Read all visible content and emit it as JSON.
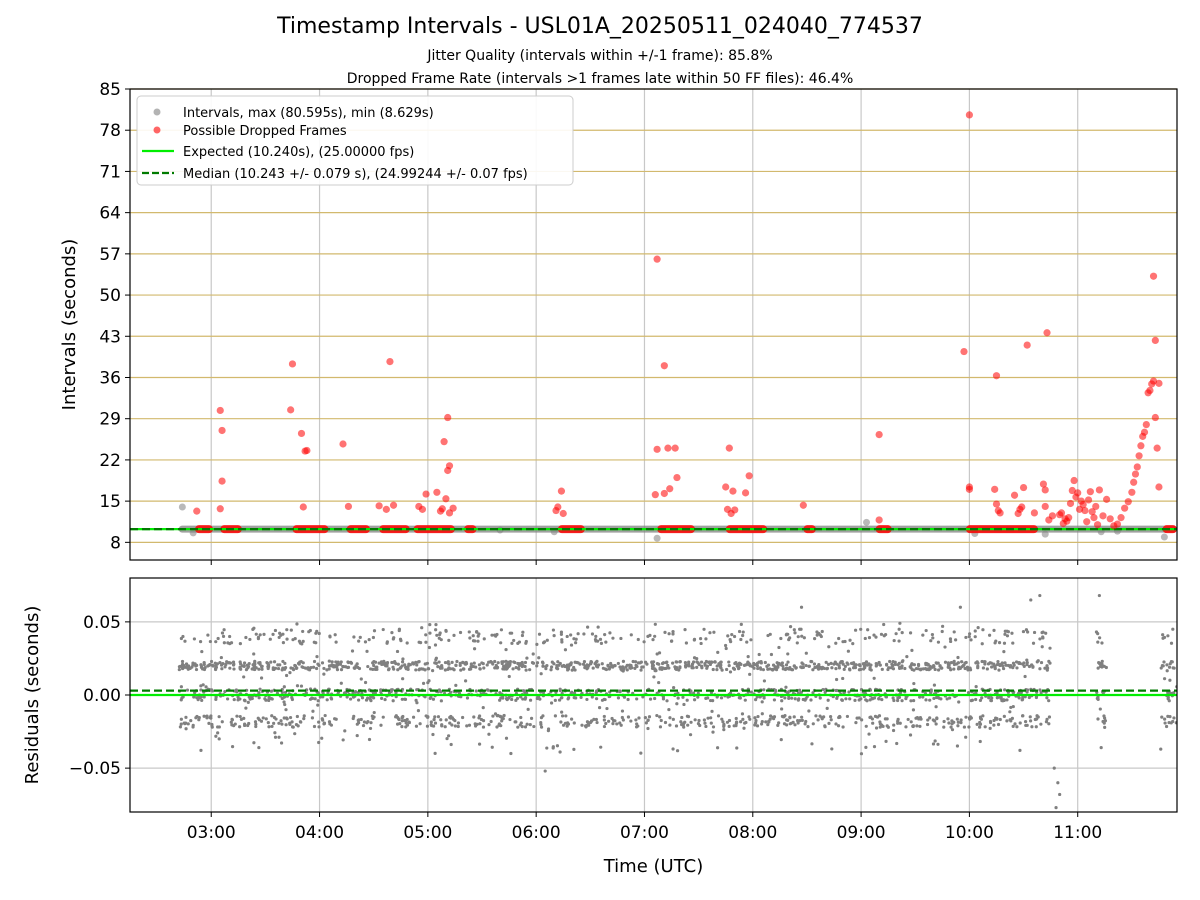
{
  "header": {
    "title": "Timestamp Intervals - USL01A_20250511_024040_774537",
    "subtitle_jitter": "Jitter Quality (intervals within +/-1 frame): 85.8%",
    "subtitle_dropped": "Dropped Frame Rate (intervals >1 frames late within 50 FF files): 46.4%"
  },
  "colors": {
    "intervals": "#808080",
    "dropped": "#ff0000",
    "expected": "#00ee00",
    "median": "#007a00",
    "hgrid": "#d2b96e",
    "vgrid": "#c8c8c8"
  },
  "chart_data": [
    {
      "type": "scatter",
      "ylabel": "Intervals (seconds)",
      "xlabel": "",
      "ylim": [
        5,
        85
      ],
      "yticks": [
        "8",
        "15",
        "22",
        "29",
        "36",
        "43",
        "50",
        "57",
        "64",
        "71",
        "78",
        "85"
      ],
      "xlim": [
        "02:15",
        "11:55"
      ],
      "grid": true,
      "legend_position": "top-left",
      "legend": [
        "Intervals, max (80.595s), min (8.629s)",
        "Possible Dropped Frames",
        "Expected (10.240s), (25.00000 fps)",
        "Median (10.243 +/- 0.079 s), (24.99244 +/- 0.07 fps)"
      ],
      "lines": {
        "expected": 10.24,
        "median": 10.243
      },
      "series": [
        {
          "name": "Intervals, max (80.595s), min (8.629s)",
          "baseline_segment": [
            "02:42",
            "11:55"
          ],
          "baseline_value": 10.24,
          "points": [
            [
              "02:44",
              14.0
            ],
            [
              "02:50",
              9.6
            ],
            [
              "05:40",
              10.1
            ],
            [
              "06:10",
              9.8
            ],
            [
              "07:07",
              8.7
            ],
            [
              "09:03",
              11.4
            ],
            [
              "10:03",
              9.5
            ],
            [
              "10:42",
              9.4
            ],
            [
              "11:13",
              9.8
            ],
            [
              "11:22",
              9.9
            ],
            [
              "11:48",
              8.9
            ]
          ]
        },
        {
          "name": "Possible Dropped Frames",
          "runs": [
            [
              "02:51",
              "03:01"
            ],
            [
              "03:05",
              "03:17"
            ],
            [
              "03:45",
              "04:05"
            ],
            [
              "04:15",
              "04:28"
            ],
            [
              "04:33",
              "04:50"
            ],
            [
              "04:52",
              "05:15"
            ],
            [
              "05:20",
              "05:27"
            ],
            [
              "06:12",
              "06:27"
            ],
            [
              "07:07",
              "07:28"
            ],
            [
              "07:45",
              "08:08"
            ],
            [
              "08:28",
              "08:35"
            ],
            [
              "09:08",
              "09:17"
            ],
            [
              "09:58",
              "10:38"
            ],
            [
              "11:47",
              "11:55"
            ]
          ],
          "points": [
            [
              "02:52",
              13.3
            ],
            [
              "03:05",
              30.4
            ],
            [
              "03:06",
              27.0
            ],
            [
              "03:06",
              18.4
            ],
            [
              "03:05",
              13.7
            ],
            [
              "03:45",
              38.3
            ],
            [
              "03:44",
              30.5
            ],
            [
              "03:50",
              26.5
            ],
            [
              "03:53",
              23.6
            ],
            [
              "03:52",
              23.5
            ],
            [
              "03:51",
              14.0
            ],
            [
              "04:13",
              24.7
            ],
            [
              "04:16",
              14.1
            ],
            [
              "04:33",
              14.2
            ],
            [
              "04:37",
              13.6
            ],
            [
              "04:39",
              38.7
            ],
            [
              "04:41",
              14.3
            ],
            [
              "04:55",
              14.1
            ],
            [
              "04:57",
              13.6
            ],
            [
              "04:59",
              16.2
            ],
            [
              "05:05",
              16.5
            ],
            [
              "05:07",
              13.3
            ],
            [
              "05:08",
              13.7
            ],
            [
              "05:09",
              25.1
            ],
            [
              "05:10",
              15.4
            ],
            [
              "05:11",
              29.2
            ],
            [
              "05:12",
              21.0
            ],
            [
              "05:11",
              20.2
            ],
            [
              "05:12",
              13.0
            ],
            [
              "05:14",
              13.8
            ],
            [
              "06:11",
              13.4
            ],
            [
              "06:12",
              14.0
            ],
            [
              "06:14",
              16.7
            ],
            [
              "06:15",
              12.9
            ],
            [
              "07:06",
              16.1
            ],
            [
              "07:07",
              23.8
            ],
            [
              "07:07",
              56.1
            ],
            [
              "07:11",
              16.3
            ],
            [
              "07:11",
              38.0
            ],
            [
              "07:13",
              24.0
            ],
            [
              "07:14",
              17.1
            ],
            [
              "07:17",
              24.0
            ],
            [
              "07:18",
              19.0
            ],
            [
              "07:45",
              17.4
            ],
            [
              "07:46",
              13.6
            ],
            [
              "07:47",
              24.0
            ],
            [
              "07:48",
              12.9
            ],
            [
              "07:49",
              16.7
            ],
            [
              "07:50",
              13.5
            ],
            [
              "07:56",
              16.4
            ],
            [
              "07:58",
              19.3
            ],
            [
              "08:28",
              14.3
            ],
            [
              "09:10",
              26.3
            ],
            [
              "09:10",
              11.8
            ],
            [
              "09:57",
              40.4
            ],
            [
              "10:00",
              17.4
            ],
            [
              "10:00",
              17.0
            ],
            [
              "10:00",
              80.6
            ],
            [
              "10:14",
              17.0
            ],
            [
              "10:15",
              14.5
            ],
            [
              "10:16",
              13.4
            ],
            [
              "10:15",
              36.3
            ],
            [
              "10:17",
              13.0
            ],
            [
              "10:25",
              16.0
            ],
            [
              "10:27",
              12.9
            ],
            [
              "10:28",
              13.6
            ],
            [
              "10:29",
              14.0
            ],
            [
              "10:30",
              17.3
            ],
            [
              "10:32",
              41.5
            ],
            [
              "10:36",
              13.0
            ],
            [
              "10:41",
              17.9
            ],
            [
              "10:42",
              16.9
            ],
            [
              "10:42",
              14.1
            ],
            [
              "10:43",
              43.6
            ],
            [
              "10:44",
              11.8
            ],
            [
              "10:46",
              12.5
            ],
            [
              "10:50",
              12.7
            ],
            [
              "10:51",
              13.0
            ],
            [
              "10:52",
              11.2
            ],
            [
              "10:53",
              12.0
            ],
            [
              "10:54",
              11.6
            ],
            [
              "10:55",
              12.2
            ],
            [
              "10:56",
              14.6
            ],
            [
              "10:57",
              16.8
            ],
            [
              "10:58",
              18.5
            ],
            [
              "10:59",
              15.7
            ],
            [
              "11:00",
              16.4
            ],
            [
              "11:01",
              13.6
            ],
            [
              "11:02",
              15.0
            ],
            [
              "11:03",
              14.4
            ],
            [
              "11:04",
              13.4
            ],
            [
              "11:05",
              11.5
            ],
            [
              "11:06",
              15.2
            ],
            [
              "11:07",
              16.6
            ],
            [
              "11:08",
              13.2
            ],
            [
              "11:09",
              12.2
            ],
            [
              "11:10",
              14.1
            ],
            [
              "11:11",
              11.0
            ],
            [
              "11:12",
              16.9
            ],
            [
              "11:14",
              12.5
            ],
            [
              "11:16",
              15.3
            ],
            [
              "11:18",
              12.0
            ],
            [
              "11:20",
              10.8
            ],
            [
              "11:22",
              11.1
            ],
            [
              "11:24",
              12.2
            ],
            [
              "11:26",
              13.8
            ],
            [
              "11:28",
              14.9
            ],
            [
              "11:30",
              16.5
            ],
            [
              "11:31",
              18.2
            ],
            [
              "11:32",
              19.6
            ],
            [
              "11:33",
              20.8
            ],
            [
              "11:34",
              22.7
            ],
            [
              "11:35",
              24.4
            ],
            [
              "11:36",
              26.0
            ],
            [
              "11:37",
              26.7
            ],
            [
              "11:38",
              28.0
            ],
            [
              "11:39",
              33.4
            ],
            [
              "11:40",
              33.8
            ],
            [
              "11:41",
              34.9
            ],
            [
              "11:42",
              35.4
            ],
            [
              "11:43",
              29.2
            ],
            [
              "11:43",
              42.3
            ],
            [
              "11:42",
              53.2
            ],
            [
              "11:44",
              24.0
            ],
            [
              "11:45",
              17.4
            ],
            [
              "11:45",
              35.0
            ]
          ]
        }
      ]
    },
    {
      "type": "scatter",
      "ylabel": "Residuals (seconds)",
      "xlabel": "Time (UTC)",
      "ylim": [
        -0.08,
        0.08
      ],
      "yticks": [
        "0.05",
        "0.00",
        "−0.05"
      ],
      "xticks": [
        "03:00",
        "04:00",
        "05:00",
        "06:00",
        "07:00",
        "08:00",
        "09:00",
        "10:00",
        "11:00"
      ],
      "xlim": [
        "02:15",
        "11:55"
      ],
      "grid": true,
      "lines": {
        "expected": 0.0,
        "median": 0.003
      },
      "series": [
        {
          "name": "Residuals",
          "clusters": [
            -0.018,
            0.0,
            0.02,
            0.04
          ],
          "coverage": [
            [
              "02:42",
              "10:45"
            ],
            [
              "11:10",
              "11:16"
            ],
            [
              "11:46",
              "11:55"
            ]
          ],
          "outliers": [
            [
              "06:05",
              -0.052
            ],
            [
              "10:49",
              -0.06
            ],
            [
              "10:50",
              -0.068
            ],
            [
              "10:48",
              -0.077
            ],
            [
              "10:47",
              -0.05
            ],
            [
              "10:39",
              0.068
            ],
            [
              "10:34",
              0.065
            ],
            [
              "11:12",
              0.068
            ],
            [
              "08:27",
              0.06
            ],
            [
              "09:55",
              0.06
            ],
            [
              "11:13",
              -0.036
            ],
            [
              "11:46",
              -0.037
            ]
          ]
        }
      ]
    }
  ]
}
